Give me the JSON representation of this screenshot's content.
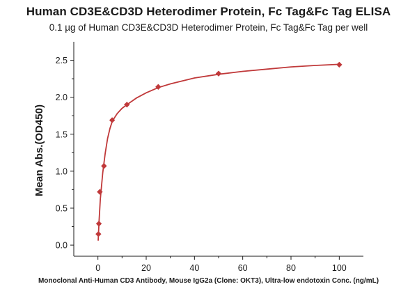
{
  "chart_data": {
    "type": "scatter",
    "title": "Human CD3E&CD3D Heterodimer Protein, Fc Tag&Fc Tag ELISA",
    "subtitle": "0.1 µg of Human CD3E&CD3D Heterodimer Protein, Fc Tag&Fc Tag per well",
    "xlabel": "Monoclonal Anti-Human CD3 Antibody, Mouse IgG2a (Clone: OKT3), Ultra-low endotoxin Conc. (ng/mL)",
    "ylabel": "Mean Abs.(OD450)",
    "xlim": [
      -10,
      110
    ],
    "ylim": [
      -0.15,
      2.75
    ],
    "xticks": [
      0,
      20,
      40,
      60,
      80,
      100
    ],
    "yticks": [
      0.0,
      0.5,
      1.0,
      1.5,
      2.0,
      2.5
    ],
    "ytick_labels": [
      "0.0",
      "0.5",
      "1.0",
      "1.5",
      "2.0",
      "2.5"
    ],
    "grid": false,
    "series": [
      {
        "points": [
          {
            "x": 0.2,
            "y": 0.15
          },
          {
            "x": 0.39,
            "y": 0.29
          },
          {
            "x": 0.78,
            "y": 0.72
          },
          {
            "x": 2.5,
            "y": 1.07
          },
          {
            "x": 5.9,
            "y": 1.69
          },
          {
            "x": 12.0,
            "y": 1.9
          },
          {
            "x": 25.0,
            "y": 2.14
          },
          {
            "x": 50.0,
            "y": 2.32
          },
          {
            "x": 100.0,
            "y": 2.44
          }
        ],
        "fit_curve": [
          {
            "x": 0.1,
            "y": 0.06
          },
          {
            "x": 0.5,
            "y": 0.34
          },
          {
            "x": 1.0,
            "y": 0.62
          },
          {
            "x": 2.0,
            "y": 0.98
          },
          {
            "x": 3.0,
            "y": 1.24
          },
          {
            "x": 4.0,
            "y": 1.44
          },
          {
            "x": 5.0,
            "y": 1.58
          },
          {
            "x": 6.0,
            "y": 1.68
          },
          {
            "x": 8.0,
            "y": 1.78
          },
          {
            "x": 10.0,
            "y": 1.85
          },
          {
            "x": 12.0,
            "y": 1.9
          },
          {
            "x": 16.0,
            "y": 1.99
          },
          {
            "x": 20.0,
            "y": 2.06
          },
          {
            "x": 25.0,
            "y": 2.13
          },
          {
            "x": 30.0,
            "y": 2.18
          },
          {
            "x": 40.0,
            "y": 2.26
          },
          {
            "x": 50.0,
            "y": 2.31
          },
          {
            "x": 60.0,
            "y": 2.35
          },
          {
            "x": 70.0,
            "y": 2.38
          },
          {
            "x": 80.0,
            "y": 2.41
          },
          {
            "x": 90.0,
            "y": 2.43
          },
          {
            "x": 100.0,
            "y": 2.445
          }
        ],
        "color": "#c0393a"
      }
    ]
  }
}
